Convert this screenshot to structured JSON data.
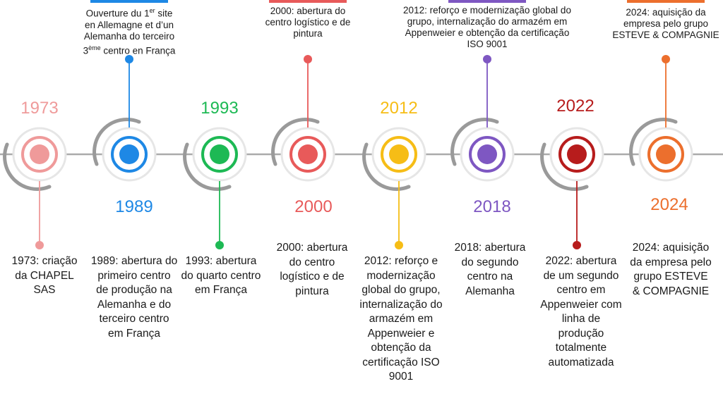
{
  "colors": {
    "line": "#aaaaaa",
    "ring_shadow": "#9a9a9a"
  },
  "milestones": [
    {
      "year": "1973",
      "color": "#ef9a9a",
      "description": "1973: criação da CHAPEL SAS",
      "top_description": ""
    },
    {
      "year": "1989",
      "color": "#1e88e5",
      "description": "1989: abertura do primeiro centro de produção na Alemanha e do terceiro centro em França",
      "top_line1_pre": "Ouverture du 1",
      "top_line1_sup": "er",
      "top_line1_post": " site",
      "top_line2": "en Allemagne et d’un",
      "top_line3": "Alemanha do terceiro",
      "top_line4_pre": "3",
      "top_line4_sup": "ème",
      "top_line4_post": " centro en França"
    },
    {
      "year": "1993",
      "color": "#1db954",
      "description": "1993: abertura do quarto centro em França",
      "top_description": ""
    },
    {
      "year": "2000",
      "color": "#e85a5a",
      "description": "2000: abertura do centro logístico e de pintura",
      "top_description": "2000: abertura do centro logístico e de pintura"
    },
    {
      "year": "2012",
      "color": "#f6bd16",
      "description": "2012: reforço e modernização global do grupo, internalização do armazém em Appenweier e obtenção da certificação ISO 9001",
      "top_description": ""
    },
    {
      "year": "2018",
      "color": "#7e57c2",
      "description": "2018: abertura do segundo centro na Alemanha",
      "top_description": "2012: reforço e modernização global do grupo, internalização do armazém em Appenweier e obtenção da certificação ISO 9001"
    },
    {
      "year": "2022",
      "color": "#b71c1c",
      "description": "2022: abertura de um segundo centro em Appenweier com linha de produção totalmente automatizada",
      "top_description": ""
    },
    {
      "year": "2024",
      "color": "#ec6f2d",
      "description": "2024: aquisição da empresa pelo grupo ESTEVE & COMPAGNIE",
      "top_description": "2024: aquisição da empresa pelo grupo ESTEVE & COMPAGNIE"
    }
  ]
}
